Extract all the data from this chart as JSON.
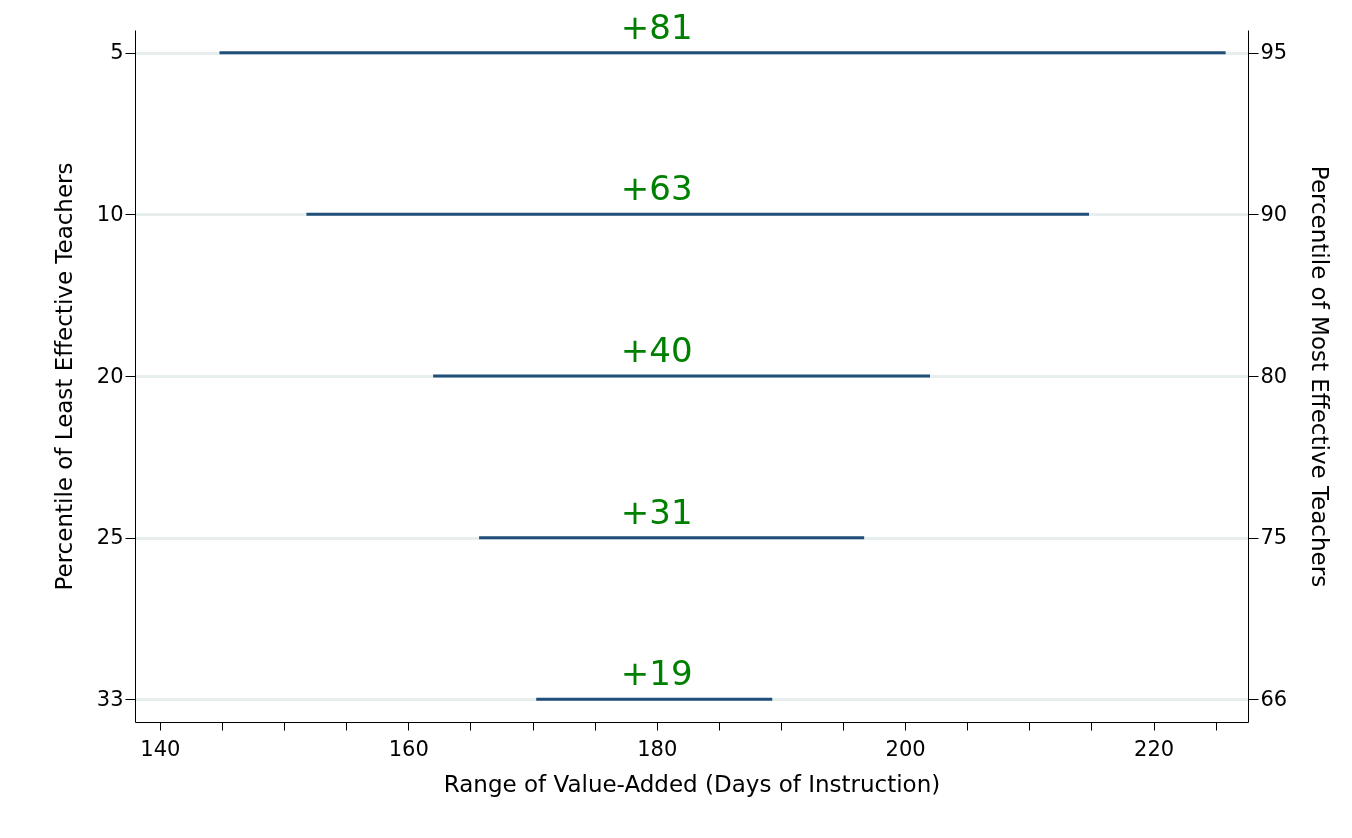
{
  "chart_data": {
    "type": "bar",
    "orientation": "horizontal",
    "categories": [
      "5",
      "10",
      "20",
      "25",
      "33"
    ],
    "y2_categories": [
      "95",
      "90",
      "80",
      "75",
      "66"
    ],
    "base": [
      144.8,
      151.8,
      162,
      165.7,
      170.3
    ],
    "values": [
      81,
      63,
      40,
      31,
      19
    ],
    "value_labels": [
      "+81",
      "+63",
      "+40",
      "+31",
      "+19"
    ],
    "color": "#1f4e79",
    "xlabel": "Range of Value-Added (Days of Instruction)",
    "ylabel": "Percentile of Least Effective Teachers",
    "y2label": "Percentile of Most Effective Teachers",
    "xlim": [
      138,
      227.6
    ],
    "xticks": [
      140,
      {
        "value": 145,
        "label": null
      },
      {
        "value": 150,
        "label": null
      },
      {
        "value": 155,
        "label": null
      },
      160,
      {
        "value": 165,
        "label": null
      },
      {
        "value": 170,
        "label": null
      },
      {
        "value": 175,
        "label": null
      },
      180,
      {
        "value": 185,
        "label": null
      },
      {
        "value": 190,
        "label": null
      },
      {
        "value": 195,
        "label": null
      },
      200,
      {
        "value": 205,
        "label": null
      },
      {
        "value": 210,
        "label": null
      },
      {
        "value": 215,
        "label": null
      },
      220,
      {
        "value": 225,
        "label": null
      }
    ],
    "grid": "y"
  }
}
